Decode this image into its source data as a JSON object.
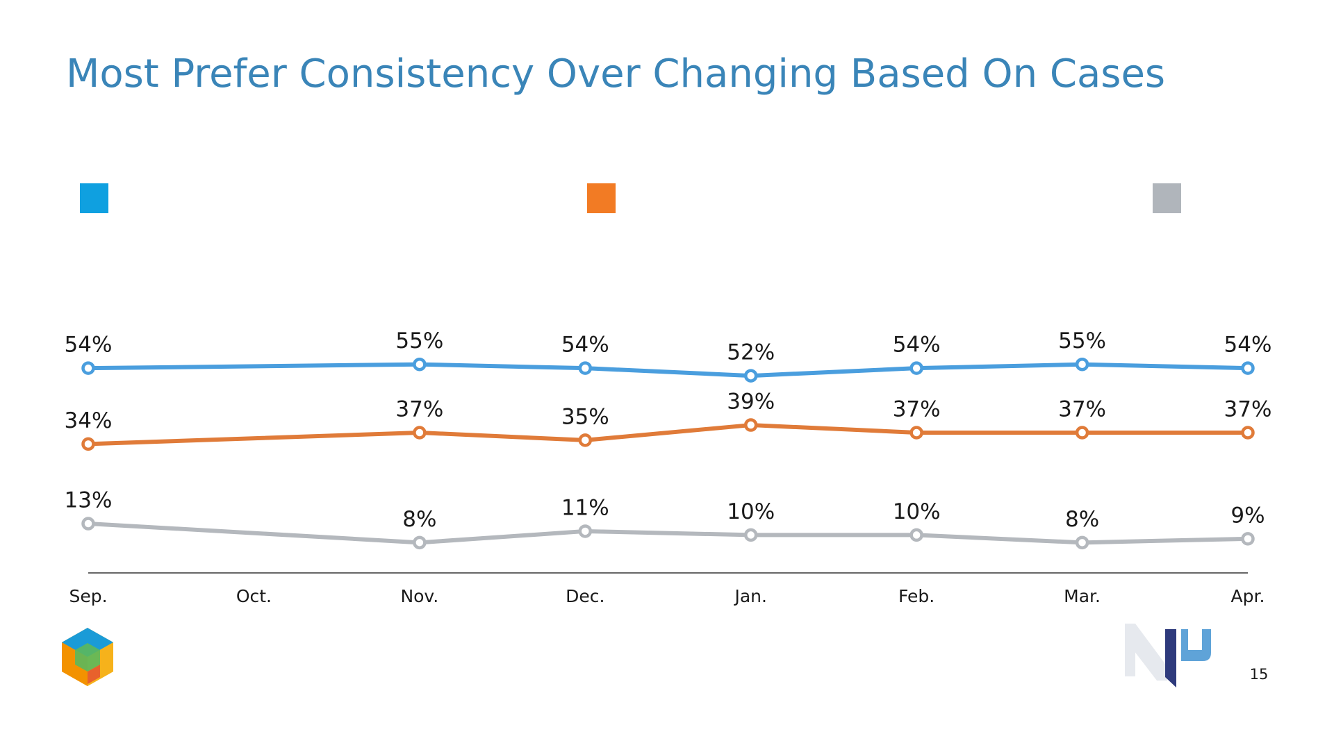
{
  "chart_data": {
    "type": "line",
    "title": "Most Prefer Consistency Over Changing Based On Cases",
    "categories": [
      "Sep.",
      "Oct.",
      "Nov.",
      "Dec.",
      "Jan.",
      "Feb.",
      "Mar.",
      "Apr."
    ],
    "ylim": [
      0,
      100
    ],
    "series": [
      {
        "color": "#4a9ede",
        "legend_color": "#0fa0e0",
        "values": [
          54,
          null,
          55,
          54,
          52,
          54,
          55,
          54
        ],
        "value_labels": [
          "54%",
          null,
          "55%",
          "54%",
          "52%",
          "54%",
          "55%",
          "54%"
        ]
      },
      {
        "color": "#e07b39",
        "legend_color": "#f27b24",
        "values": [
          34,
          null,
          37,
          35,
          39,
          37,
          37,
          37
        ],
        "value_labels": [
          "34%",
          null,
          "37%",
          "35%",
          "39%",
          "37%",
          "37%",
          "37%"
        ]
      },
      {
        "color": "#b4b8bd",
        "legend_color": "#b0b5bb",
        "values": [
          13,
          null,
          8,
          11,
          10,
          10,
          8,
          9
        ],
        "value_labels": [
          "13%",
          null,
          "8%",
          "11%",
          "10%",
          "10%",
          "8%",
          "9%"
        ]
      }
    ]
  },
  "page_number": "15"
}
